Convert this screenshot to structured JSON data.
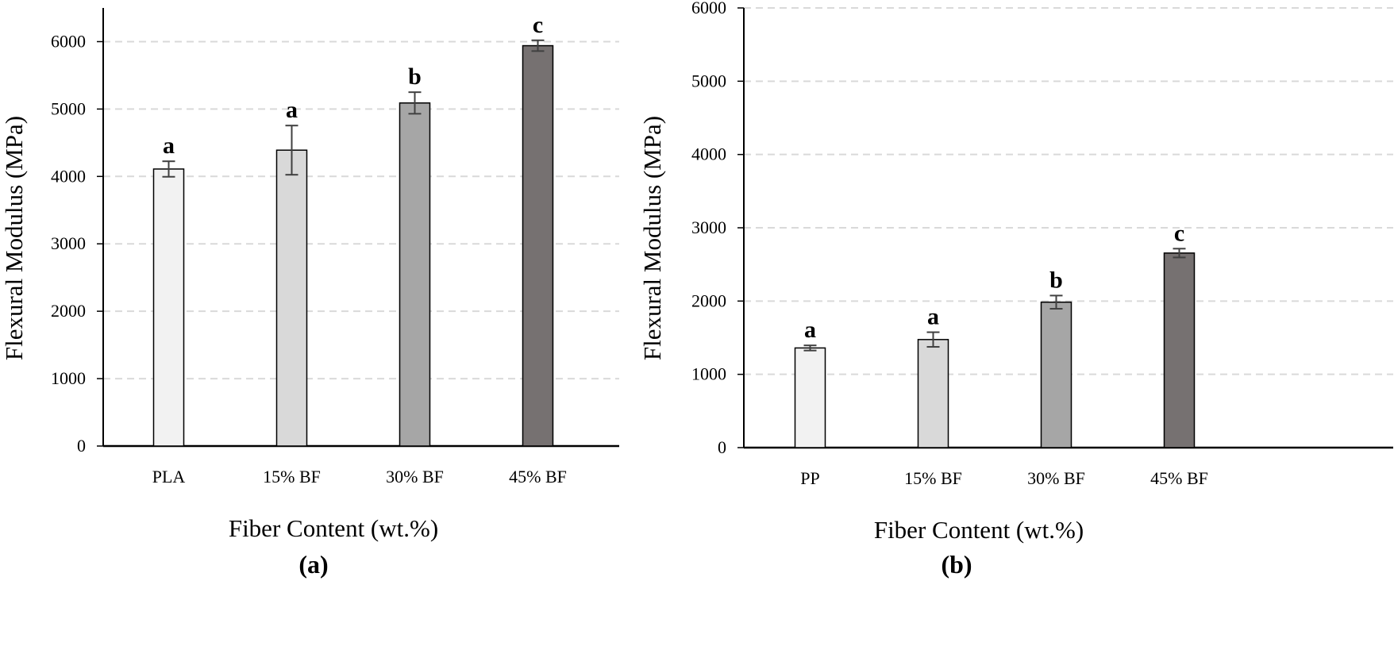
{
  "chart_data": [
    {
      "type": "bar",
      "panel_label": "(a)",
      "xlabel": "Fiber Content (wt.%)",
      "ylabel": "Flexural Modulus (MPa)",
      "categories": [
        "PLA",
        "15% BF",
        "30% BF",
        "45% BF"
      ],
      "values": [
        4110,
        4390,
        5090,
        5940
      ],
      "errors": [
        115,
        365,
        160,
        80
      ],
      "significance": [
        "a",
        "a",
        "b",
        "c"
      ],
      "ylim": [
        0,
        6500
      ],
      "yticks": [
        0,
        1000,
        2000,
        3000,
        4000,
        5000,
        6000
      ],
      "grid": true,
      "colors": [
        "#f2f2f2",
        "#d9d9d9",
        "#a6a6a6",
        "#767171"
      ]
    },
    {
      "type": "bar",
      "panel_label": "(b)",
      "xlabel": "Fiber Content (wt.%)",
      "ylabel": "Flexural Modulus (MPa)",
      "categories": [
        "PP",
        "15% BF",
        "30% BF",
        "45% BF"
      ],
      "values": [
        1360,
        1475,
        1985,
        2655
      ],
      "errors": [
        35,
        100,
        90,
        60
      ],
      "significance": [
        "a",
        "a",
        "b",
        "c"
      ],
      "ylim": [
        0,
        6000
      ],
      "yticks": [
        0,
        1000,
        2000,
        3000,
        4000,
        5000,
        6000
      ],
      "grid": true,
      "colors": [
        "#f2f2f2",
        "#d9d9d9",
        "#a6a6a6",
        "#767171"
      ]
    }
  ]
}
